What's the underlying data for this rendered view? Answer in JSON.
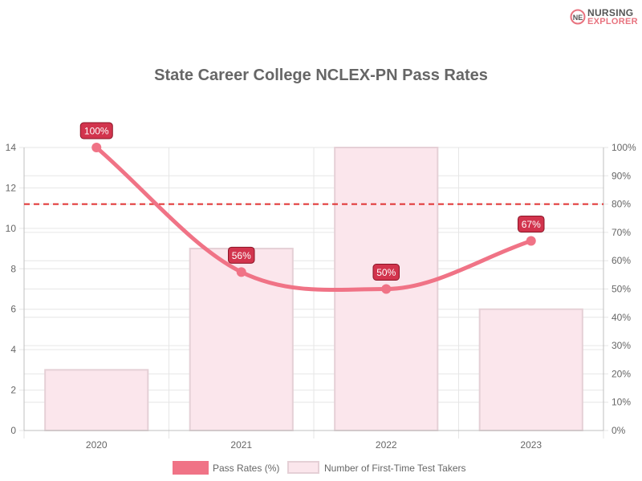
{
  "brand": {
    "line1": "NURSING",
    "line2": "EXPLORER",
    "accent_color": "#e8737f",
    "mark_letters": "NE"
  },
  "chart_data": {
    "type": "bar",
    "title": "State Career College NCLEX-PN Pass Rates",
    "categories": [
      "2020",
      "2021",
      "2022",
      "2023"
    ],
    "series": [
      {
        "name": "Pass Rates (%)",
        "type": "line",
        "axis": "right",
        "values": [
          100,
          56,
          50,
          67
        ],
        "data_labels": [
          "100%",
          "56%",
          "50%",
          "67%"
        ],
        "color": "#f07386",
        "label_color": "#d2344d"
      },
      {
        "name": "Number of First-Time Test Takers",
        "type": "bar",
        "axis": "left",
        "values": [
          3,
          9,
          14,
          6
        ],
        "fill": "#fbe6ec",
        "stroke": "#e5d0d6"
      }
    ],
    "y_left": {
      "min": 0,
      "max": 14,
      "ticks": [
        "0",
        "2",
        "4",
        "6",
        "8",
        "10",
        "12",
        "14"
      ]
    },
    "y_right": {
      "min": 0,
      "max": 100,
      "ticks": [
        "0%",
        "10%",
        "20%",
        "30%",
        "40%",
        "50%",
        "60%",
        "70%",
        "80%",
        "90%",
        "100%"
      ]
    },
    "reference_line": {
      "axis": "right",
      "value": 80,
      "color": "#e03131",
      "style": "dashed"
    },
    "grid": true,
    "legend_position": "bottom"
  }
}
